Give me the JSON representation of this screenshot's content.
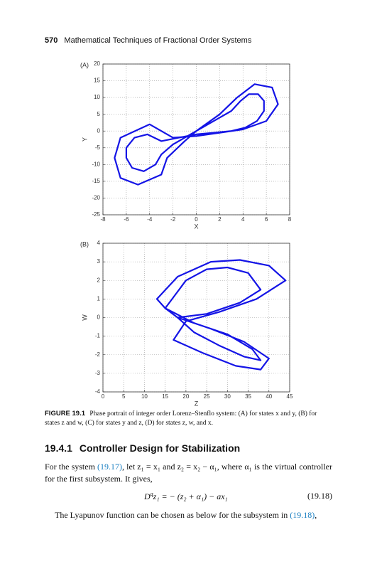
{
  "header": {
    "page_number": "570",
    "title": "Mathematical Techniques of Fractional Order Systems"
  },
  "chart_data": [
    {
      "type": "line",
      "panel_label": "(A)",
      "x_label": "X",
      "y_label": "Y",
      "xlim": [
        -8,
        8
      ],
      "ylim": [
        -25,
        20
      ],
      "xticks": [
        -8,
        -6,
        -4,
        -2,
        0,
        2,
        4,
        6,
        8
      ],
      "yticks": [
        -25,
        -20,
        -15,
        -10,
        -5,
        0,
        5,
        10,
        15,
        20
      ],
      "grid": true,
      "x": [
        0,
        1.5,
        3,
        3.8,
        4.5,
        5.3,
        5.8,
        5.8,
        5.2,
        4.2,
        3,
        1.5,
        0,
        -1.5,
        -3,
        -4.2,
        -5.3,
        -6,
        -6,
        -5.5,
        -4.5,
        -3.5,
        -3,
        -2,
        0,
        2,
        3.5,
        5,
        6.5,
        7,
        6,
        4,
        2,
        0,
        -2,
        -4,
        -6.5,
        -7,
        -6.5,
        -5,
        -3,
        -2.5,
        -1,
        0
      ],
      "series": [
        {
          "color": "#1414e6",
          "values": [
            0,
            3,
            6,
            9,
            11,
            11,
            9,
            6,
            3,
            1,
            0,
            -0.5,
            -1,
            -2,
            -3,
            -1,
            -2,
            -5,
            -8,
            -11,
            -12,
            -10,
            -7,
            -4,
            0,
            5,
            10,
            14,
            13,
            8,
            3,
            0.5,
            -0.5,
            -1.5,
            -2,
            2,
            -2,
            -8,
            -14,
            -16,
            -13,
            -8,
            -3,
            0
          ]
        }
      ]
    },
    {
      "type": "line",
      "panel_label": "(B)",
      "x_label": "Z",
      "y_label": "W",
      "xlim": [
        0,
        45
      ],
      "ylim": [
        -4,
        4
      ],
      "xticks": [
        0,
        5,
        10,
        15,
        20,
        25,
        30,
        35,
        40,
        45
      ],
      "yticks": [
        -4,
        -3,
        -2,
        -1,
        0,
        1,
        2,
        3,
        4
      ],
      "grid": true,
      "x": [
        15,
        20,
        25,
        30,
        35,
        38,
        33,
        25,
        18,
        22,
        28,
        34,
        38,
        36,
        30,
        22,
        15,
        13,
        18,
        26,
        33,
        40,
        44,
        37,
        28,
        20,
        17,
        24,
        32,
        38,
        40,
        34,
        26,
        18,
        15
      ],
      "series": [
        {
          "color": "#1414e6",
          "values": [
            0.5,
            2,
            2.6,
            2.7,
            2.4,
            1.5,
            0.8,
            0.2,
            0,
            -0.8,
            -1.5,
            -2.1,
            -2.3,
            -1.7,
            -0.9,
            -0.3,
            0.5,
            1,
            2.2,
            3,
            3.1,
            2.8,
            2,
            1,
            0.3,
            -0.2,
            -1.2,
            -1.9,
            -2.6,
            -2.8,
            -2.2,
            -1.3,
            -0.6,
            0,
            0.5
          ]
        }
      ]
    }
  ],
  "caption": {
    "label": "FIGURE 19.1",
    "text": "Phase portrait of integer order Lorenz–Stenflo system: (A) for states x and y, (B) for states z and w, (C) for states y and z, (D) for states z, w, and x."
  },
  "section": {
    "number": "19.4.1",
    "title": "Controller Design for Stabilization"
  },
  "paragraph_1": [
    "For the system ",
    "(19.17)",
    ", let z₁ = x₁ and z₂ = x₂ − α₁, where α₁ is the virtual controller for the first subsystem. It gives,"
  ],
  "equation": {
    "operator": "D",
    "order": "q",
    "body": "z₁ = − (z₂ + α₁) − ax₁",
    "number": "(19.18)"
  },
  "paragraph_2": [
    "The Lyapunov function can be chosen as below for the subsystem in ",
    "(19.18)",
    ","
  ]
}
